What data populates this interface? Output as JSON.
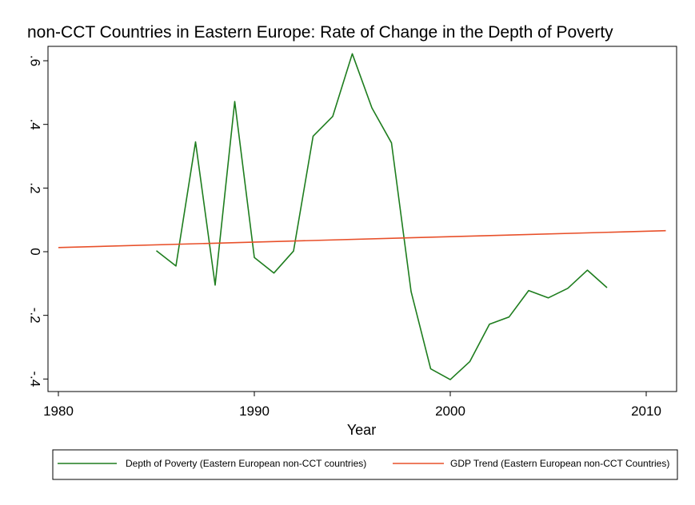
{
  "chart_data": {
    "type": "line",
    "title": "non-CCT Countries in Eastern Europe: Rate of Change in the Depth of Poverty",
    "xlabel": "Year",
    "ylabel": "",
    "xlim": [
      1980,
      2012
    ],
    "ylim": [
      -0.42,
      0.66
    ],
    "xticks": [
      1980,
      1990,
      2000,
      2010
    ],
    "xtick_labels": [
      "1980",
      "1990",
      "2000",
      "2010"
    ],
    "yticks": [
      -0.4,
      -0.2,
      0,
      0.2,
      0.4,
      0.6
    ],
    "ytick_labels": [
      "-.4",
      "-.2",
      "0",
      ".2",
      ".4",
      ".6"
    ],
    "grid": false,
    "legend_position": "bottom",
    "series": [
      {
        "name": "Depth of Poverty (Eastern European non-CCT countries)",
        "color": "#1e7d1e",
        "x": [
          1985,
          1986,
          1987,
          1988,
          1989,
          1990,
          1991,
          1992,
          1993,
          1994,
          1995,
          1996,
          1997,
          1998,
          1999,
          2000,
          2001,
          2002,
          2003,
          2004,
          2005,
          2006,
          2007,
          2008
        ],
        "y": [
          0.003,
          -0.045,
          0.345,
          -0.105,
          0.472,
          -0.018,
          -0.067,
          0.002,
          0.363,
          0.425,
          0.622,
          0.452,
          0.342,
          -0.125,
          -0.368,
          -0.402,
          -0.345,
          -0.228,
          -0.205,
          -0.122,
          -0.145,
          -0.115,
          -0.058,
          -0.113
        ]
      },
      {
        "name": "GDP Trend (Eastern European non-CCT Countries)",
        "color": "#e8502a",
        "x": [
          1980,
          2011
        ],
        "y": [
          0.013,
          0.066
        ]
      }
    ]
  }
}
